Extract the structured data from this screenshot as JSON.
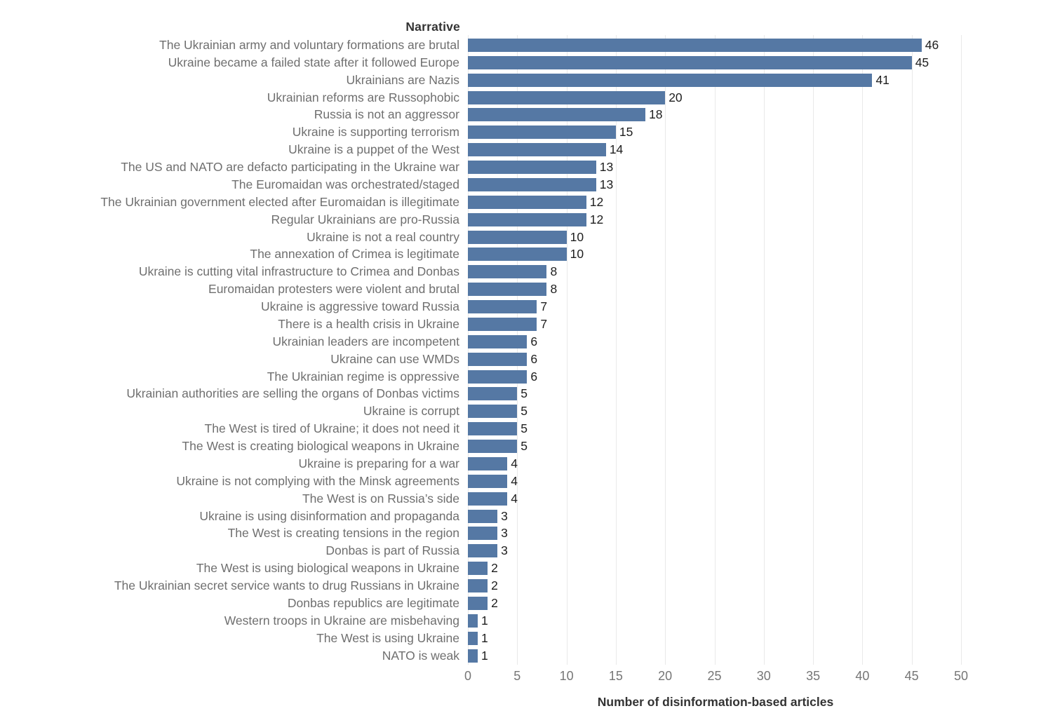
{
  "chart": {
    "header": "Narrative",
    "xlabel": "Number of disinformation-based articles",
    "bar_color": "#5578a4",
    "gridline_color": "#e9e9e9",
    "label_color": "#6f6f6f",
    "value_color": "#1e1e1e"
  },
  "chart_data": {
    "type": "bar",
    "orientation": "horizontal",
    "title": "",
    "ylabel": "Narrative",
    "xlabel": "Number of disinformation-based articles",
    "xlim": [
      0,
      50
    ],
    "x_ticks": [
      0,
      5,
      10,
      15,
      20,
      25,
      30,
      35,
      40,
      45,
      50
    ],
    "grid": "vertical-on",
    "legend": "none",
    "bar_labels": "shown-at-bar-end",
    "categories": [
      "The Ukrainian army and voluntary formations are brutal",
      "Ukraine became a failed state after it followed Europe",
      "Ukrainians are Nazis",
      "Ukrainian reforms are Russophobic",
      "Russia is not an aggressor",
      "Ukraine is supporting terrorism",
      "Ukraine is a puppet of the West",
      "The US and NATO are defacto participating in the Ukraine war",
      "The Euromaidan was orchestrated/staged",
      "The Ukrainian government elected after Euromaidan is illegitimate",
      "Regular Ukrainians are pro-Russia",
      "Ukraine is not a real country",
      "The annexation of Crimea is legitimate",
      "Ukraine is cutting vital infrastructure to Crimea and Donbas",
      "Euromaidan protesters were violent and brutal",
      "Ukraine is aggressive toward Russia",
      "There is a health crisis in Ukraine",
      "Ukrainian leaders are incompetent",
      "Ukraine can use WMDs",
      "The Ukrainian regime is oppressive",
      "Ukrainian authorities are selling the organs of Donbas victims",
      "Ukraine is corrupt",
      "The West is tired of Ukraine; it does not need it",
      "The West is creating biological weapons in Ukraine",
      "Ukraine is preparing for a war",
      "Ukraine is not complying with the Minsk agreements",
      "The West is on Russia’s side",
      "Ukraine is using disinformation and propaganda",
      "The West is creating tensions in the region",
      "Donbas is part of Russia",
      "The West is using biological weapons in Ukraine",
      "The Ukrainian secret service wants to drug Russians in Ukraine",
      "Donbas republics are legitimate",
      "Western troops in Ukraine are misbehaving",
      "The West is using Ukraine",
      "NATO is weak"
    ],
    "values": [
      46,
      45,
      41,
      20,
      18,
      15,
      14,
      13,
      13,
      12,
      12,
      10,
      10,
      8,
      8,
      7,
      7,
      6,
      6,
      6,
      5,
      5,
      5,
      5,
      4,
      4,
      4,
      3,
      3,
      3,
      2,
      2,
      2,
      1,
      1,
      1
    ]
  }
}
